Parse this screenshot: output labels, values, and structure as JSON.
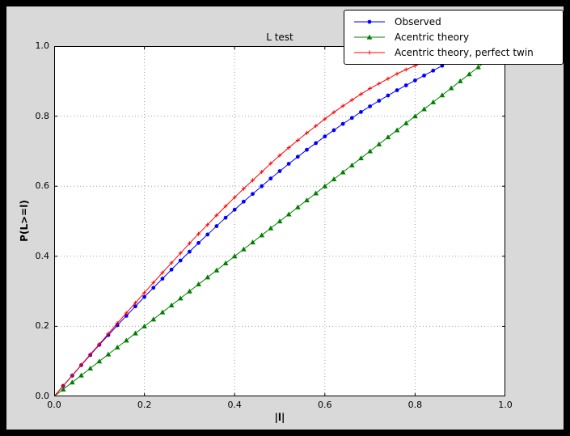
{
  "window": {
    "bg": "#000000"
  },
  "figure": {
    "bg": "#d9d9d9",
    "plot_bg": "#ffffff",
    "grid_color": "#9e9e9e",
    "axis_color": "#000000"
  },
  "chart_data": {
    "type": "line",
    "title": "L test",
    "xlabel": "|l|",
    "ylabel": "P(L>=l)",
    "xlim": [
      0.0,
      1.0
    ],
    "ylim": [
      0.0,
      1.0
    ],
    "xticks": [
      0.0,
      0.2,
      0.4,
      0.6,
      0.8,
      1.0
    ],
    "xtick_labels": [
      "0.0",
      "0.2",
      "0.4",
      "0.6",
      "0.8",
      "1.0"
    ],
    "yticks": [
      0.0,
      0.2,
      0.4,
      0.6,
      0.8,
      1.0
    ],
    "ytick_labels": [
      "0.0",
      "0.2",
      "0.4",
      "0.6",
      "0.8",
      "1.0"
    ],
    "grid": true,
    "legend_position": "upper right",
    "series": [
      {
        "name": "Observed",
        "color": "#0000ff",
        "marker": "circle",
        "x": [
          0.0,
          0.02,
          0.04,
          0.06,
          0.08,
          0.1,
          0.12,
          0.14,
          0.16,
          0.18,
          0.2,
          0.22,
          0.24,
          0.26,
          0.28,
          0.3,
          0.32,
          0.34,
          0.36,
          0.38,
          0.4,
          0.42,
          0.44,
          0.46,
          0.48,
          0.5,
          0.52,
          0.54,
          0.56,
          0.58,
          0.6,
          0.62,
          0.64,
          0.66,
          0.68,
          0.7,
          0.72,
          0.74,
          0.76,
          0.78,
          0.8,
          0.82,
          0.84,
          0.86
        ],
        "values": [
          0.0,
          0.03,
          0.059,
          0.089,
          0.118,
          0.147,
          0.175,
          0.203,
          0.23,
          0.257,
          0.284,
          0.31,
          0.336,
          0.362,
          0.388,
          0.413,
          0.438,
          0.462,
          0.486,
          0.51,
          0.533,
          0.556,
          0.578,
          0.6,
          0.622,
          0.643,
          0.664,
          0.684,
          0.704,
          0.723,
          0.742,
          0.76,
          0.778,
          0.795,
          0.812,
          0.828,
          0.844,
          0.859,
          0.874,
          0.888,
          0.902,
          0.916,
          0.93,
          0.944
        ]
      },
      {
        "name": "Acentric theory",
        "color": "#008000",
        "marker": "triangle",
        "x": [
          0.0,
          0.02,
          0.04,
          0.06,
          0.08,
          0.1,
          0.12,
          0.14,
          0.16,
          0.18,
          0.2,
          0.22,
          0.24,
          0.26,
          0.28,
          0.3,
          0.32,
          0.34,
          0.36,
          0.38,
          0.4,
          0.42,
          0.44,
          0.46,
          0.48,
          0.5,
          0.52,
          0.54,
          0.56,
          0.58,
          0.6,
          0.62,
          0.64,
          0.66,
          0.68,
          0.7,
          0.72,
          0.74,
          0.76,
          0.78,
          0.8,
          0.82,
          0.84,
          0.86,
          0.88,
          0.9,
          0.92,
          0.94,
          0.96
        ],
        "values": [
          0.0,
          0.02,
          0.04,
          0.06,
          0.08,
          0.1,
          0.12,
          0.14,
          0.16,
          0.18,
          0.2,
          0.22,
          0.24,
          0.26,
          0.28,
          0.3,
          0.32,
          0.34,
          0.36,
          0.38,
          0.4,
          0.42,
          0.44,
          0.46,
          0.48,
          0.5,
          0.52,
          0.54,
          0.56,
          0.58,
          0.6,
          0.62,
          0.64,
          0.66,
          0.68,
          0.7,
          0.72,
          0.74,
          0.76,
          0.78,
          0.8,
          0.82,
          0.84,
          0.86,
          0.88,
          0.9,
          0.92,
          0.94,
          0.96
        ]
      },
      {
        "name": "Acentric theory, perfect twin",
        "color": "#ff0000",
        "marker": "plus",
        "x": [
          0.0,
          0.02,
          0.04,
          0.06,
          0.08,
          0.1,
          0.12,
          0.14,
          0.16,
          0.18,
          0.2,
          0.22,
          0.24,
          0.26,
          0.28,
          0.3,
          0.32,
          0.34,
          0.36,
          0.38,
          0.4,
          0.42,
          0.44,
          0.46,
          0.48,
          0.5,
          0.52,
          0.54,
          0.56,
          0.58,
          0.6,
          0.62,
          0.64,
          0.66,
          0.68,
          0.7,
          0.72,
          0.74,
          0.76,
          0.78,
          0.8,
          0.82,
          0.84,
          0.86
        ],
        "values": [
          0.0,
          0.03,
          0.06,
          0.09,
          0.12,
          0.149,
          0.179,
          0.209,
          0.238,
          0.267,
          0.296,
          0.325,
          0.353,
          0.381,
          0.409,
          0.437,
          0.464,
          0.49,
          0.517,
          0.543,
          0.568,
          0.593,
          0.617,
          0.641,
          0.665,
          0.688,
          0.71,
          0.731,
          0.752,
          0.772,
          0.792,
          0.811,
          0.829,
          0.846,
          0.863,
          0.879,
          0.893,
          0.907,
          0.921,
          0.933,
          0.944,
          0.954,
          0.964,
          0.972
        ]
      }
    ]
  }
}
